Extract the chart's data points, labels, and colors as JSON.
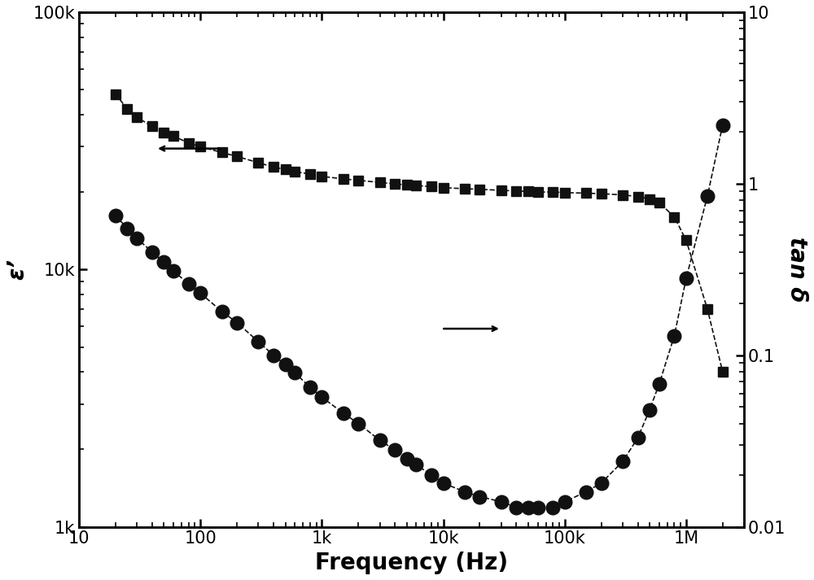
{
  "title": "",
  "xlabel": "Frequency (Hz)",
  "ylabel_left": "ε’",
  "ylabel_right": "tan δ",
  "background_color": "#ffffff",
  "freq_epsilon": [
    20,
    25,
    30,
    40,
    50,
    60,
    80,
    100,
    150,
    200,
    300,
    400,
    500,
    600,
    800,
    1000,
    1500,
    2000,
    3000,
    4000,
    5000,
    6000,
    8000,
    10000,
    15000,
    20000,
    30000,
    40000,
    50000,
    60000,
    80000,
    100000,
    150000,
    200000,
    300000,
    400000,
    500000,
    600000,
    800000,
    1000000,
    1500000,
    2000000
  ],
  "epsilon_values": [
    48000,
    42000,
    39000,
    36000,
    34000,
    33000,
    31000,
    30000,
    28500,
    27500,
    26000,
    25000,
    24500,
    24000,
    23500,
    23000,
    22500,
    22200,
    21800,
    21500,
    21300,
    21200,
    21000,
    20800,
    20600,
    20500,
    20300,
    20200,
    20100,
    20000,
    20000,
    19900,
    19800,
    19700,
    19500,
    19200,
    18800,
    18200,
    16000,
    13000,
    7000,
    4000
  ],
  "freq_tand": [
    20,
    25,
    30,
    40,
    50,
    60,
    80,
    100,
    150,
    200,
    300,
    400,
    500,
    600,
    800,
    1000,
    1500,
    2000,
    3000,
    4000,
    5000,
    6000,
    8000,
    10000,
    15000,
    20000,
    30000,
    40000,
    50000,
    60000,
    80000,
    100000,
    150000,
    200000,
    300000,
    400000,
    500000,
    600000,
    800000,
    1000000,
    1500000,
    2000000
  ],
  "tand_values": [
    0.65,
    0.55,
    0.48,
    0.4,
    0.35,
    0.31,
    0.26,
    0.23,
    0.18,
    0.155,
    0.12,
    0.1,
    0.088,
    0.079,
    0.065,
    0.057,
    0.046,
    0.04,
    0.032,
    0.028,
    0.025,
    0.023,
    0.02,
    0.018,
    0.016,
    0.015,
    0.014,
    0.013,
    0.013,
    0.013,
    0.013,
    0.014,
    0.016,
    0.018,
    0.024,
    0.033,
    0.048,
    0.068,
    0.13,
    0.28,
    0.85,
    2.2
  ],
  "marker_epsilon": "s",
  "marker_tand": "o",
  "marker_size_epsilon": 9,
  "marker_size_tand": 12,
  "line_style": "--",
  "line_color": "#111111",
  "marker_color": "#111111"
}
